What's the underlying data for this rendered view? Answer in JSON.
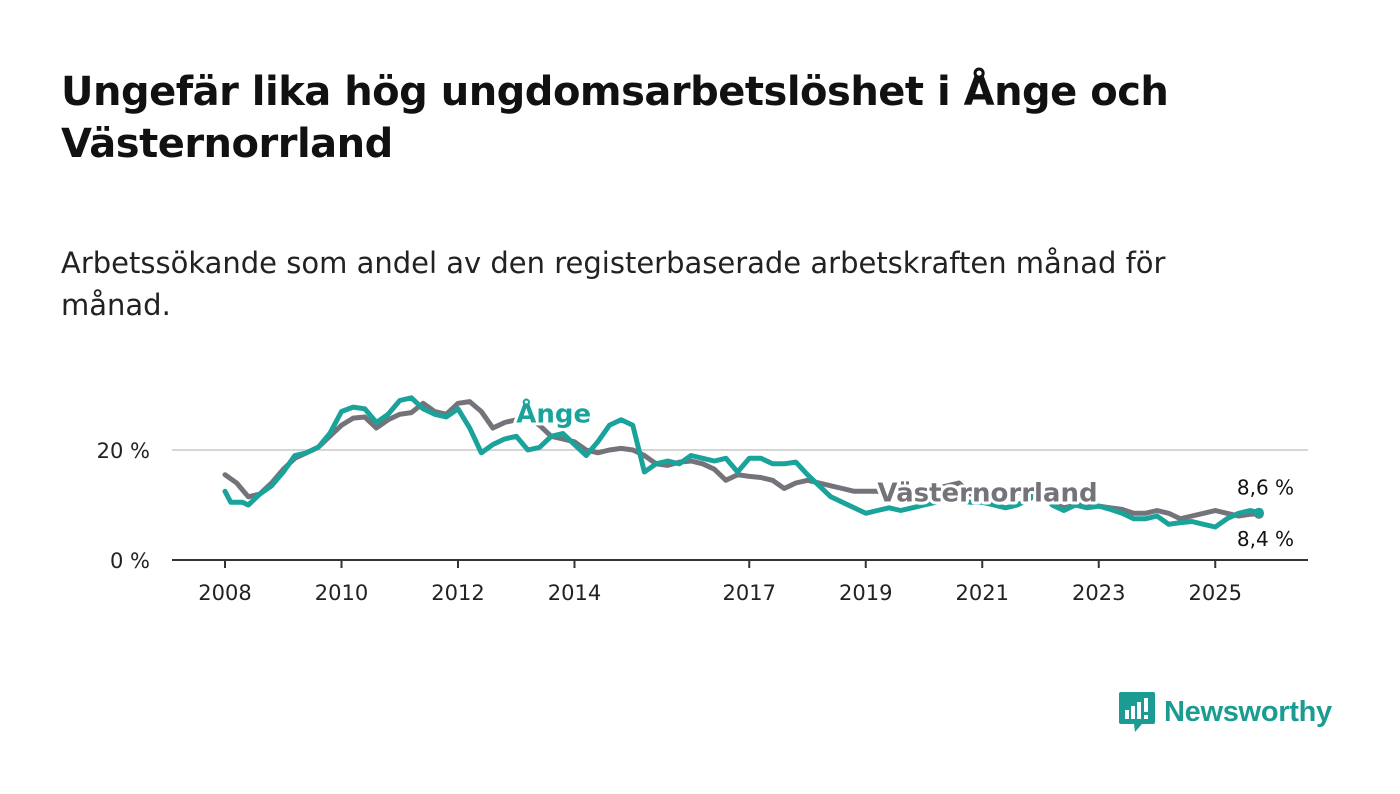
{
  "title": "Ungefär lika hög ungdomsarbetslöshet i Ånge och Västernorrland",
  "subtitle": "Arbetssökande som andel av den registerbaserade arbetskraften månad för månad.",
  "brand": {
    "name": "Newsworthy",
    "icon": "bar-chart-bubble-icon",
    "color": "#1a9c92"
  },
  "chart_data": {
    "type": "line",
    "title": "Ungefär lika hög ungdomsarbetslöshet i Ånge och Västernorrland",
    "xlabel": "",
    "ylabel": "",
    "xlim": [
      2007.7,
      2025.8
    ],
    "ylim": [
      0,
      30
    ],
    "x_ticks": [
      2008,
      2010,
      2012,
      2014,
      2017,
      2019,
      2021,
      2023,
      2025
    ],
    "x_tick_labels": [
      "2008",
      "2010",
      "2012",
      "2014",
      "2017",
      "2019",
      "2021",
      "2023",
      "2025"
    ],
    "y_ticks": [
      0,
      20
    ],
    "y_tick_labels": [
      "0 %",
      "20 %"
    ],
    "grid": "horizontal",
    "series": [
      {
        "name": "Västernorrland",
        "color": "#75737a",
        "end_label": "8,4 %",
        "x": [
          2008.0,
          2008.2,
          2008.4,
          2008.6,
          2008.8,
          2009.0,
          2009.2,
          2009.4,
          2009.6,
          2009.8,
          2010.0,
          2010.2,
          2010.4,
          2010.6,
          2010.8,
          2011.0,
          2011.2,
          2011.4,
          2011.6,
          2011.8,
          2012.0,
          2012.2,
          2012.4,
          2012.6,
          2012.8,
          2013.0,
          2013.2,
          2013.4,
          2013.6,
          2013.8,
          2014.0,
          2014.2,
          2014.4,
          2014.6,
          2014.8,
          2015.0,
          2015.2,
          2015.4,
          2015.6,
          2015.8,
          2016.0,
          2016.2,
          2016.4,
          2016.6,
          2016.8,
          2017.0,
          2017.2,
          2017.4,
          2017.6,
          2017.8,
          2018.0,
          2018.2,
          2018.4,
          2018.6,
          2018.8,
          2019.0,
          2019.2,
          2019.4,
          2019.6,
          2019.8,
          2020.0,
          2020.2,
          2020.4,
          2020.6,
          2020.8,
          2021.0,
          2021.2,
          2021.4,
          2021.6,
          2021.8,
          2022.0,
          2022.2,
          2022.4,
          2022.6,
          2022.8,
          2023.0,
          2023.2,
          2023.4,
          2023.6,
          2023.8,
          2024.0,
          2024.2,
          2024.4,
          2024.6,
          2024.8,
          2025.0,
          2025.2,
          2025.4,
          2025.6,
          2025.75
        ],
        "values": [
          15.5,
          14.0,
          11.5,
          12.0,
          14.0,
          16.5,
          18.5,
          19.5,
          20.5,
          22.5,
          24.5,
          25.8,
          26.0,
          24.0,
          25.5,
          26.5,
          26.8,
          28.5,
          27.0,
          26.5,
          28.5,
          28.8,
          27.0,
          24.0,
          25.0,
          25.5,
          25.8,
          24.5,
          22.5,
          22.0,
          21.5,
          20.0,
          19.5,
          20.0,
          20.3,
          20.0,
          19.0,
          17.5,
          17.2,
          17.8,
          18.0,
          17.5,
          16.5,
          14.5,
          15.5,
          15.2,
          15.0,
          14.5,
          13.0,
          14.0,
          14.5,
          14.0,
          13.5,
          13.0,
          12.5,
          12.5,
          12.5,
          12.0,
          12.5,
          12.0,
          12.5,
          13.0,
          13.5,
          14.0,
          12.0,
          12.5,
          12.5,
          12.8,
          12.5,
          12.0,
          11.5,
          10.5,
          9.5,
          10.0,
          10.2,
          9.8,
          9.5,
          9.2,
          8.5,
          8.5,
          9.0,
          8.5,
          7.5,
          8.0,
          8.5,
          9.0,
          8.5,
          8.0,
          8.3,
          8.4
        ]
      },
      {
        "name": "Ånge",
        "color": "#1aa39a",
        "end_label": "8,6 %",
        "x": [
          2008.0,
          2008.1,
          2008.3,
          2008.4,
          2008.6,
          2008.8,
          2009.0,
          2009.2,
          2009.4,
          2009.6,
          2009.8,
          2010.0,
          2010.2,
          2010.4,
          2010.6,
          2010.8,
          2011.0,
          2011.2,
          2011.4,
          2011.6,
          2011.8,
          2012.0,
          2012.2,
          2012.4,
          2012.6,
          2012.8,
          2013.0,
          2013.2,
          2013.4,
          2013.6,
          2013.8,
          2014.0,
          2014.2,
          2014.4,
          2014.6,
          2014.8,
          2015.0,
          2015.2,
          2015.4,
          2015.6,
          2015.8,
          2016.0,
          2016.2,
          2016.4,
          2016.6,
          2016.8,
          2017.0,
          2017.2,
          2017.4,
          2017.6,
          2017.8,
          2018.0,
          2018.2,
          2018.4,
          2018.6,
          2018.8,
          2019.0,
          2019.2,
          2019.4,
          2019.6,
          2019.8,
          2020.0,
          2020.2,
          2020.4,
          2020.6,
          2020.8,
          2021.0,
          2021.2,
          2021.4,
          2021.6,
          2021.8,
          2022.0,
          2022.2,
          2022.4,
          2022.6,
          2022.8,
          2023.0,
          2023.2,
          2023.4,
          2023.6,
          2023.8,
          2024.0,
          2024.2,
          2024.4,
          2024.6,
          2024.8,
          2025.0,
          2025.2,
          2025.4,
          2025.6,
          2025.75
        ],
        "values": [
          12.5,
          10.5,
          10.5,
          10.0,
          12.0,
          13.5,
          16.0,
          19.0,
          19.5,
          20.5,
          23.0,
          27.0,
          27.8,
          27.5,
          25.0,
          26.5,
          29.0,
          29.5,
          27.5,
          26.5,
          26.0,
          27.5,
          24.0,
          19.5,
          21.0,
          22.0,
          22.5,
          20.0,
          20.5,
          22.5,
          23.0,
          21.0,
          19.0,
          21.5,
          24.5,
          25.5,
          24.5,
          16.0,
          17.5,
          18.0,
          17.5,
          19.0,
          18.5,
          18.0,
          18.5,
          16.0,
          18.5,
          18.5,
          17.5,
          17.5,
          17.8,
          15.5,
          13.5,
          11.5,
          10.5,
          9.5,
          8.5,
          9.0,
          9.5,
          9.0,
          9.5,
          10.0,
          10.5,
          11.0,
          10.8,
          10.5,
          10.5,
          10.0,
          9.5,
          10.0,
          11.0,
          12.5,
          10.0,
          9.0,
          10.0,
          9.5,
          9.8,
          9.2,
          8.5,
          7.5,
          7.5,
          8.0,
          6.5,
          6.8,
          7.0,
          6.5,
          6.0,
          7.5,
          8.5,
          9.0,
          8.6
        ]
      }
    ],
    "labels": [
      {
        "series": "Ånge",
        "text": "Ånge",
        "at": 2013.0
      },
      {
        "series": "Västernorrland",
        "text": "Västernorrland",
        "at": 2019.2
      }
    ]
  }
}
